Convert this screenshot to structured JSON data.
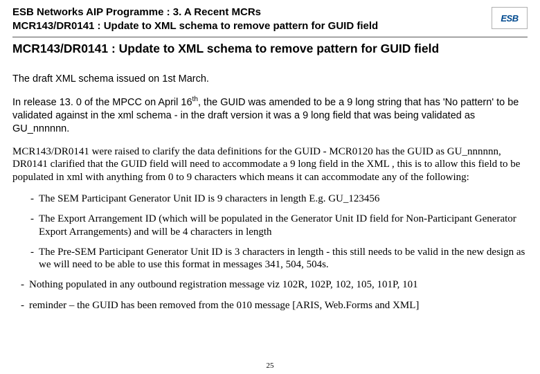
{
  "header": {
    "line1": "ESB Networks AIP Programme  : 3. A    Recent MCRs",
    "line2": "MCR143/DR0141  : Update to XML schema to remove pattern for GUID field",
    "logo_text": "ESB"
  },
  "title": "MCR143/DR0141 : Update to XML schema to remove pattern for GUID field",
  "para1": "The draft XML schema issued on 1st March.",
  "para2_a": "In release 13. 0 of the MPCC on April 16",
  "para2_sup": "th",
  "para2_b": ", the GUID was amended to be a 9 long string that has 'No pattern' to be validated against in the xml schema - in the draft version it was a 9 long field that was being validated as GU_nnnnnn.",
  "para3": "MCR143/DR0141 were raised to clarify the data definitions for the GUID  - MCR0120  has the GUID as GU_nnnnnn, DR0141 clarified that the GUID field will need to accommodate a 9 long field in the XML , this is to allow this field to be populated in xml with anything from 0 to 9 characters which means it can accommodate any of the following:",
  "bullets": [
    "The SEM Participant Generator Unit ID is 9 characters in length  E.g.  GU_123456",
    "The Export Arrangement ID (which will be populated in the Generator Unit ID field for Non-Participant Generator Export Arrangements) and will be 4 characters in length",
    "The Pre-SEM Participant Generator Unit ID is 3 characters in length - this still needs to be valid in the new design as we will need to be able to use this format in messages  341, 504, 504s.",
    "Nothing populated in any outbound registration message viz 102R, 102P, 102, 105, 101P, 101",
    "reminder – the GUID has been removed from the 010 message  [ARIS, Web.Forms and XML]"
  ],
  "page_number": "25"
}
